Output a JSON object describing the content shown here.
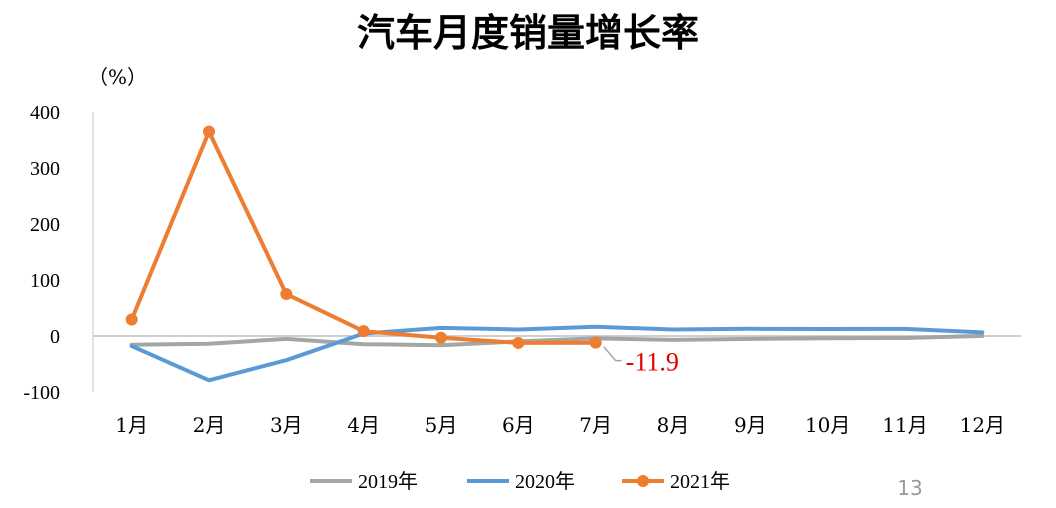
{
  "chart_data": {
    "type": "line",
    "title": "汽车月度销量增长率",
    "ylabel": "（%）",
    "xlabel": "",
    "categories": [
      "1月",
      "2月",
      "3月",
      "4月",
      "5月",
      "6月",
      "7月",
      "8月",
      "9月",
      "10月",
      "11月",
      "12月"
    ],
    "ylim": [
      -100,
      400
    ],
    "yticks": [
      400,
      300,
      200,
      100,
      0,
      -100
    ],
    "ytick_labels": [
      "400",
      "300",
      "200",
      "100",
      "0",
      "-100"
    ],
    "series": [
      {
        "name": "2019年",
        "color": "#a5a5a5",
        "markers": false,
        "values": [
          -15.8,
          -13.8,
          -5.2,
          -14.6,
          -16.4,
          -9.6,
          -4.3,
          -6.9,
          -5.2,
          -4.0,
          -3.6,
          0.2
        ]
      },
      {
        "name": "2020年",
        "color": "#5b9bd5",
        "markers": false,
        "values": [
          -18.0,
          -79.1,
          -43.3,
          4.4,
          14.5,
          11.6,
          16.4,
          11.6,
          12.8,
          12.5,
          12.6,
          6.4
        ]
      },
      {
        "name": "2021年",
        "color": "#ed7d31",
        "markers": true,
        "values": [
          29.5,
          365.0,
          74.9,
          8.6,
          -3.1,
          -12.4,
          -11.9,
          null,
          null,
          null,
          null,
          null
        ]
      }
    ],
    "annotations": [
      {
        "text": "-11.9",
        "series": "2021年",
        "category": "7月",
        "color": "#e00000"
      }
    ],
    "grid": false,
    "legend_position": "bottom"
  },
  "page_number": "13"
}
